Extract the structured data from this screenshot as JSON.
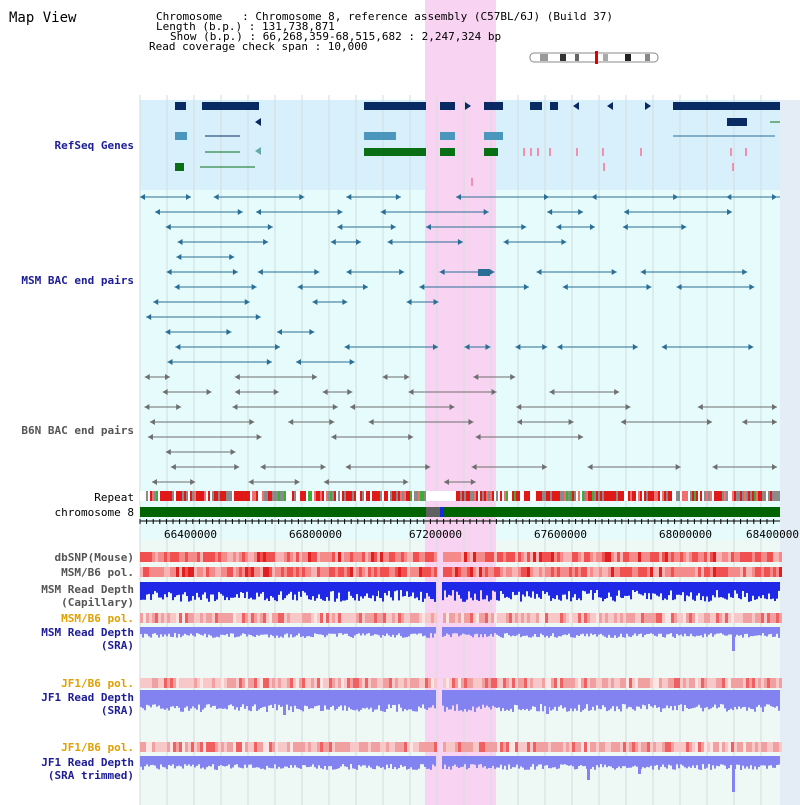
{
  "panel_title": "Map View",
  "info": {
    "line1": "Chromosome   : Chromosome 8, reference assembly (C57BL/6J) (Build 37)",
    "line2": "Length (b.p.) : 131,738,871",
    "line3": "Show (b.p.) : 66,268,359-68,515,682 : 2,247,324 bp",
    "line4": "Read coverage check span : 10,000"
  },
  "tracks": {
    "refseq": "RefSeq Genes",
    "msm_bac": "MSM BAC end pairs",
    "b6n_bac": "B6N BAC end pairs",
    "repeat": "Repeat",
    "chromosome": "chromosome 8",
    "dbsnp": "dbSNP(Mouse)",
    "msm_b6_pol_1": "MSM/B6 pol.",
    "msm_read_depth_cap_1": "MSM Read Depth",
    "msm_read_depth_cap_2": "(Capillary)",
    "msm_b6_pol_2": "MSM/B6 pol.",
    "msm_read_depth_sra_1": "MSM Read Depth",
    "msm_read_depth_sra_2": "(SRA)",
    "jf1_b6_pol_1": "JF1/B6 pol.",
    "jf1_read_depth_sra_1": "JF1 Read Depth",
    "jf1_read_depth_sra_2": "(SRA)",
    "jf1_b6_pol_2": "JF1/B6 pol.",
    "jf1_read_depth_trim_1": "JF1 Read Depth",
    "jf1_read_depth_trim_2": "(SRA trimmed)"
  },
  "axis_ticks": [
    "66400000",
    "66800000",
    "67200000",
    "67600000",
    "68000000",
    "68400000"
  ],
  "colors": {
    "highlight": "#f8d4f2",
    "refseq_bg": "#d8f0fc",
    "gene_dark": "#0a2a64",
    "gene_mid": "#4a96bc",
    "gene_green": "#0a6e14",
    "bac_line": "#2a6e96",
    "b6n_line": "#6e6e6e",
    "chromosome_bar": "#006400",
    "read_depth_blue": "#1e28e6",
    "read_depth_violet": "#8282f0"
  }
}
